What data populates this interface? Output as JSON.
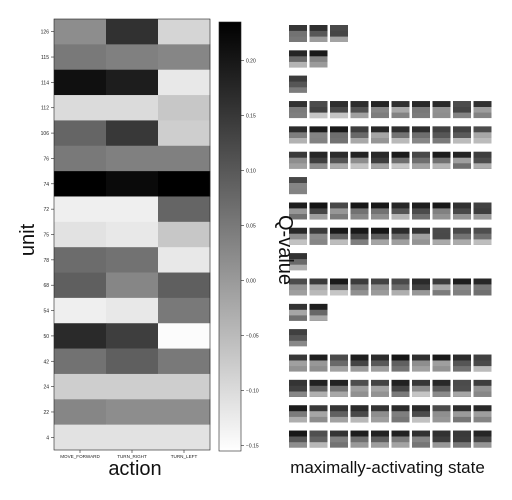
{
  "chart_data": {
    "type": "heatmap",
    "xlabel": "action",
    "ylabel": "unit",
    "colorbar_label": "Q-value",
    "right_panel_label": "maximally-activating state",
    "x_categories": [
      "MOVE_FORWARD",
      "TURN_RIGHT",
      "TURN_LEFT"
    ],
    "y_categories": [
      "126",
      "115",
      "114",
      "112",
      "106",
      "76",
      "74",
      "72",
      "75",
      "78",
      "68",
      "54",
      "50",
      "42",
      "24",
      "22",
      "4"
    ],
    "values": [
      [
        0.02,
        0.16,
        -0.09
      ],
      [
        0.05,
        0.04,
        0.03
      ],
      [
        0.21,
        0.19,
        -0.12
      ],
      [
        -0.1,
        -0.1,
        -0.07
      ],
      [
        0.08,
        0.15,
        -0.08
      ],
      [
        0.05,
        0.04,
        0.04
      ],
      [
        0.24,
        0.22,
        0.24
      ],
      [
        -0.13,
        -0.13,
        0.08
      ],
      [
        -0.11,
        -0.12,
        -0.07
      ],
      [
        0.07,
        0.06,
        -0.12
      ],
      [
        0.09,
        0.03,
        0.09
      ],
      [
        -0.13,
        -0.12,
        0.05
      ],
      [
        0.17,
        0.14,
        -0.15
      ],
      [
        0.06,
        0.09,
        0.05
      ],
      [
        -0.08,
        -0.08,
        -0.08
      ],
      [
        0.03,
        0.02,
        0.02
      ],
      [
        -0.11,
        -0.11,
        -0.11
      ]
    ],
    "colorbar_ticks": [
      "0.20",
      "0.15",
      "0.10",
      "0.05",
      "0.00",
      "−0.05",
      "−0.10",
      "−0.15"
    ],
    "colorbar_tick_values": [
      0.2,
      0.15,
      0.1,
      0.05,
      0.0,
      -0.05,
      -0.1,
      -0.15
    ],
    "vmin": -0.155,
    "vmax": 0.235,
    "colormap": [
      "#ffffff",
      "#000000"
    ],
    "state_thumbnail_counts": [
      3,
      2,
      1,
      10,
      10,
      10,
      1,
      10,
      10,
      1,
      10,
      2,
      1,
      10,
      10,
      10,
      10
    ]
  }
}
